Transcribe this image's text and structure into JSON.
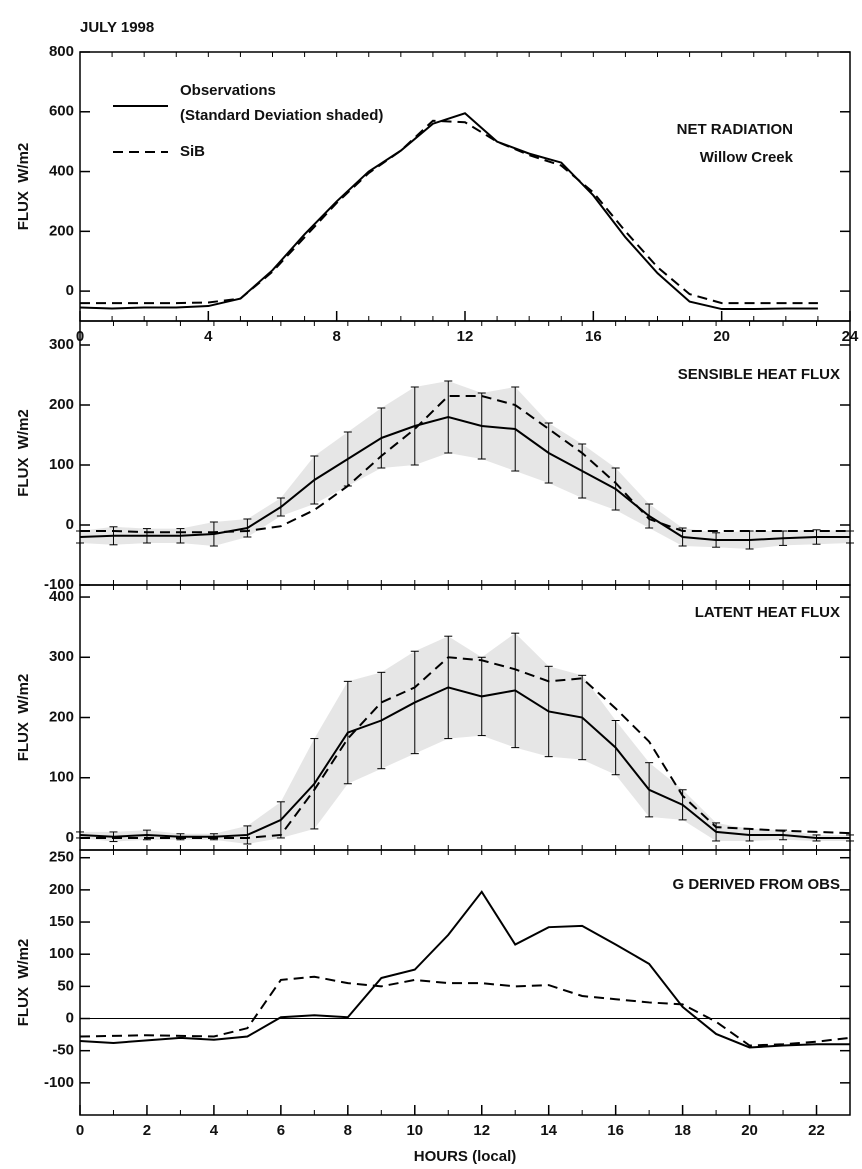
{
  "chart_data": [
    {
      "type": "line",
      "title": "JULY 1998",
      "label": [
        "NET RADIATION",
        "Willow Creek"
      ],
      "ylabel": "FLUX  W/m2",
      "legend_note": "(Standard Deviation shaded)",
      "xlim": [
        0,
        24
      ],
      "xticks": [
        0,
        4,
        8,
        12,
        16,
        20,
        24
      ],
      "ylim": [
        -100,
        800
      ],
      "yticks": [
        0,
        200,
        400,
        600,
        800
      ],
      "x": [
        0,
        1,
        2,
        3,
        4,
        5,
        6,
        7,
        8,
        9,
        10,
        11,
        12,
        13,
        14,
        15,
        16,
        17,
        18,
        19,
        20,
        21,
        22,
        23
      ],
      "series": [
        {
          "name": "Observations",
          "color": "#000000",
          "style": "solid",
          "values": [
            -55,
            -58,
            -55,
            -55,
            -50,
            -25,
            70,
            190,
            300,
            400,
            470,
            560,
            595,
            500,
            460,
            430,
            320,
            180,
            60,
            -35,
            -60,
            -60,
            -58,
            -58
          ]
        },
        {
          "name": "SiB",
          "color": "#000000",
          "style": "dashed",
          "values": [
            -40,
            -40,
            -40,
            -40,
            -38,
            -25,
            65,
            180,
            295,
            395,
            470,
            570,
            565,
            500,
            455,
            420,
            330,
            200,
            80,
            -10,
            -40,
            -40,
            -40,
            -40
          ]
        }
      ]
    },
    {
      "type": "line",
      "label": [
        "SENSIBLE HEAT FLUX"
      ],
      "ylabel": "FLUX  W/m2",
      "xlim": [
        0,
        23
      ],
      "ylim": [
        -100,
        340
      ],
      "yticks": [
        -100,
        0,
        100,
        200,
        300
      ],
      "x": [
        0,
        1,
        2,
        3,
        4,
        5,
        6,
        7,
        8,
        9,
        10,
        11,
        12,
        13,
        14,
        15,
        16,
        17,
        18,
        19,
        20,
        21,
        22,
        23
      ],
      "series": [
        {
          "color": "#000000",
          "style": "solid",
          "values": [
            -20,
            -18,
            -18,
            -18,
            -15,
            -5,
            30,
            75,
            110,
            145,
            165,
            180,
            165,
            160,
            120,
            90,
            60,
            15,
            -20,
            -25,
            -25,
            -22,
            -20,
            -20
          ],
          "error": [
            10,
            15,
            12,
            12,
            20,
            15,
            15,
            40,
            45,
            50,
            65,
            60,
            55,
            70,
            50,
            45,
            35,
            20,
            15,
            12,
            15,
            12,
            12,
            10
          ],
          "shade": "#e6e6e6"
        },
        {
          "color": "#000000",
          "style": "dashed",
          "values": [
            -10,
            -10,
            -12,
            -12,
            -12,
            -10,
            -2,
            25,
            65,
            115,
            160,
            215,
            215,
            200,
            160,
            120,
            70,
            10,
            -10,
            -10,
            -10,
            -10,
            -10,
            -10
          ]
        }
      ]
    },
    {
      "type": "line",
      "label": [
        "LATENT HEAT FLUX"
      ],
      "ylabel": "FLUX  W/m2",
      "xlim": [
        0,
        23
      ],
      "ylim": [
        -20,
        420
      ],
      "yticks": [
        0,
        100,
        200,
        300,
        400
      ],
      "x": [
        0,
        1,
        2,
        3,
        4,
        5,
        6,
        7,
        8,
        9,
        10,
        11,
        12,
        13,
        14,
        15,
        16,
        17,
        18,
        19,
        20,
        21,
        22,
        23
      ],
      "series": [
        {
          "color": "#000000",
          "style": "solid",
          "values": [
            5,
            2,
            5,
            2,
            2,
            5,
            30,
            90,
            175,
            195,
            225,
            250,
            235,
            245,
            210,
            200,
            150,
            80,
            55,
            10,
            5,
            5,
            0,
            0
          ],
          "error": [
            5,
            8,
            8,
            5,
            5,
            15,
            30,
            75,
            85,
            80,
            85,
            85,
            65,
            95,
            75,
            70,
            45,
            45,
            25,
            15,
            10,
            8,
            5,
            5
          ],
          "shade": "#e6e6e6"
        },
        {
          "color": "#000000",
          "style": "dashed",
          "values": [
            0,
            0,
            0,
            0,
            0,
            0,
            5,
            80,
            165,
            225,
            250,
            300,
            295,
            280,
            260,
            265,
            215,
            160,
            70,
            18,
            15,
            12,
            10,
            8
          ]
        }
      ]
    },
    {
      "type": "line",
      "label": [
        "G DERIVED FROM OBS"
      ],
      "ylabel": "FLUX  W/m2",
      "xlabel": "HOURS (local)",
      "zero_line": true,
      "xlim": [
        0,
        23
      ],
      "xticks": [
        0,
        2,
        4,
        6,
        8,
        10,
        12,
        14,
        16,
        18,
        20,
        22
      ],
      "ylim": [
        -150,
        262
      ],
      "yticks": [
        -100,
        -50,
        0,
        50,
        100,
        150,
        200,
        250
      ],
      "x": [
        0,
        1,
        2,
        3,
        4,
        5,
        6,
        7,
        8,
        9,
        10,
        11,
        12,
        13,
        14,
        15,
        16,
        17,
        18,
        19,
        20,
        21,
        22,
        23
      ],
      "series": [
        {
          "color": "#000000",
          "style": "solid",
          "values": [
            -35,
            -38,
            -34,
            -30,
            -33,
            -28,
            2,
            5,
            2,
            63,
            76,
            130,
            197,
            115,
            142,
            144,
            115,
            85,
            18,
            -24,
            -45,
            -42,
            -40,
            -40
          ]
        },
        {
          "color": "#000000",
          "style": "dashed",
          "values": [
            -28,
            -27,
            -26,
            -27,
            -28,
            -15,
            60,
            65,
            55,
            50,
            60,
            55,
            55,
            50,
            52,
            35,
            30,
            25,
            22,
            -5,
            -42,
            -40,
            -36,
            -30
          ]
        }
      ]
    }
  ]
}
